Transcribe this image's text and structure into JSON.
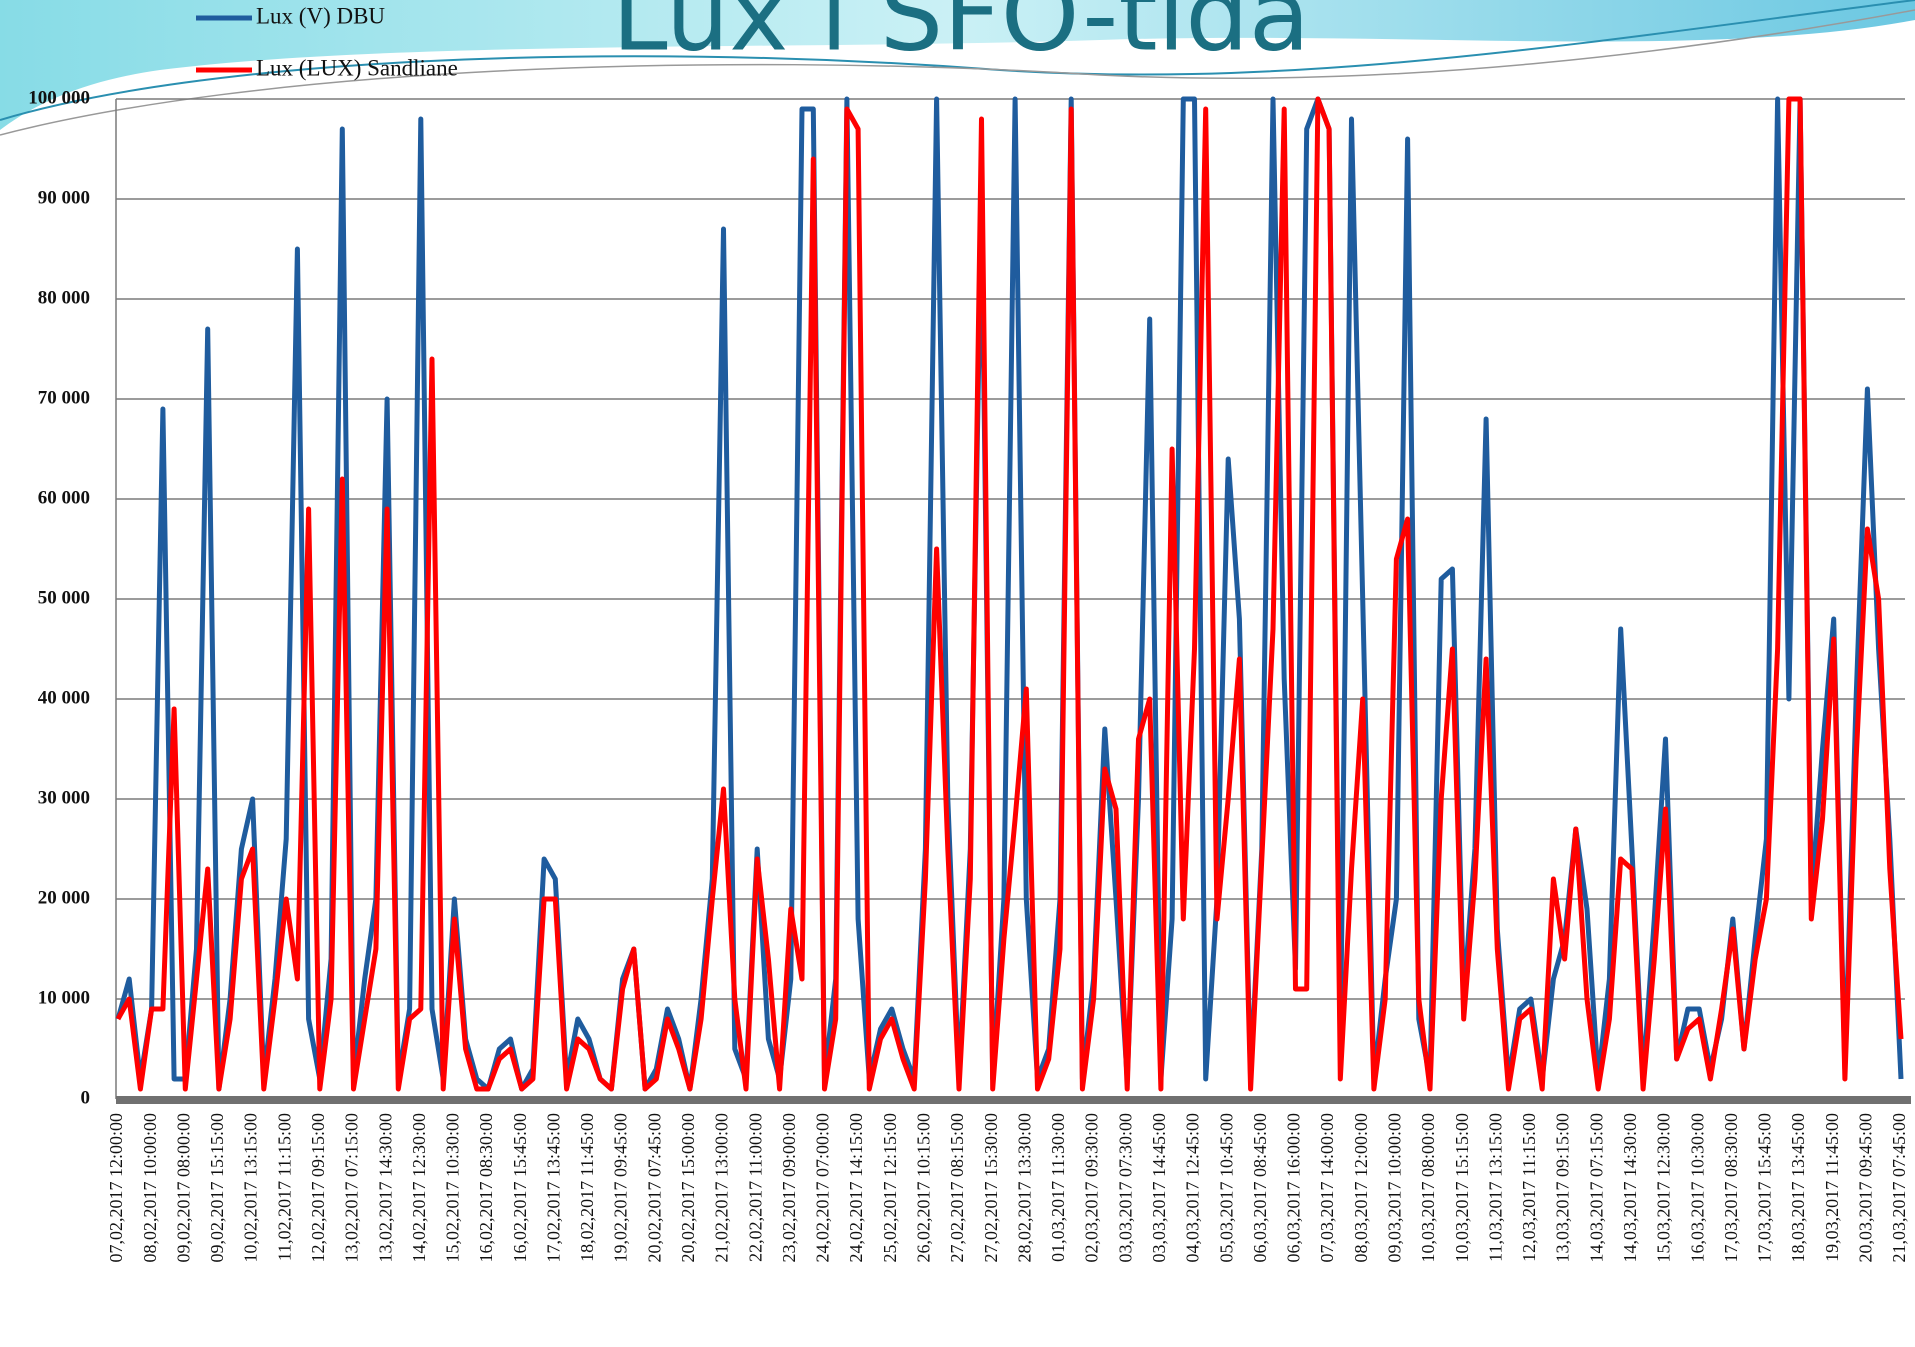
{
  "chart_data": {
    "type": "line",
    "title": "Lux i SFO-tida",
    "categories": [
      "07,02,2017 12:00:00",
      null,
      null,
      "08,02,2017 10:00:00",
      null,
      null,
      "09,02,2017 08:00:00",
      null,
      null,
      "09,02,2017 15:15:00",
      null,
      null,
      "10,02,2017 13:15:00",
      null,
      null,
      "11,02,2017 11:15:00",
      null,
      null,
      "12,02,2017 09:15:00",
      null,
      null,
      "13,02,2017 07:15:00",
      null,
      null,
      "13,02,2017 14:30:00",
      null,
      null,
      "14,02,2017 12:30:00",
      null,
      null,
      "15,02,2017 10:30:00",
      null,
      null,
      "16,02,2017 08:30:00",
      null,
      null,
      "16,02,2017 15:45:00",
      null,
      null,
      "17,02,2017 13:45:00",
      null,
      null,
      "18,02,2017 11:45:00",
      null,
      null,
      "19,02,2017 09:45:00",
      null,
      null,
      "20,02,2017 07:45:00",
      null,
      null,
      "20,02,2017 15:00:00",
      null,
      null,
      "21,02,2017 13:00:00",
      null,
      null,
      "22,02,2017 11:00:00",
      null,
      null,
      "23,02,2017 09:00:00",
      null,
      null,
      "24,02,2017 07:00:00",
      null,
      null,
      "24,02,2017 14:15:00",
      null,
      null,
      "25,02,2017 12:15:00",
      null,
      null,
      "26,02,2017 10:15:00",
      null,
      null,
      "27,02,2017 08:15:00",
      null,
      null,
      "27,02,2017 15:30:00",
      null,
      null,
      "28,02,2017 13:30:00",
      null,
      null,
      "01,03,2017 11:30:00",
      null,
      null,
      "02,03,2017 09:30:00",
      null,
      null,
      "03,03,2017 07:30:00",
      null,
      null,
      "03,03,2017 14:45:00",
      null,
      null,
      "04,03,2017 12:45:00",
      null,
      null,
      "05,03,2017 10:45:00",
      null,
      null,
      "06,03,2017 08:45:00",
      null,
      null,
      "06,03,2017 16:00:00",
      null,
      null,
      "07,03,2017 14:00:00",
      null,
      null,
      "08,03,2017 12:00:00",
      null,
      null,
      "09,03,2017 10:00:00",
      null,
      null,
      "10,03,2017 08:00:00",
      null,
      null,
      "10,03,2017 15:15:00",
      null,
      null,
      "11,03,2017 13:15:00",
      null,
      null,
      "12,03,2017 11:15:00",
      null,
      null,
      "13,03,2017 09:15:00",
      null,
      null,
      "14,03,2017 07:15:00",
      null,
      null,
      "14,03,2017 14:30:00",
      null,
      null,
      "15,03,2017 12:30:00",
      null,
      null,
      "16,03,2017 10:30:00",
      null,
      null,
      "17,03,2017 08:30:00",
      null,
      null,
      "17,03,2017 15:45:00",
      null,
      null,
      "18,03,2017 13:45:00",
      null,
      null,
      "19,03,2017 11:45:00",
      null,
      null,
      "20,03,2017 09:45:00",
      null,
      null,
      "21,03,2017 07:45:00"
    ],
    "series": [
      {
        "name": "Lux (V) DBU",
        "color": "#1f5c9e",
        "values": [
          8000,
          12000,
          2000,
          9000,
          69000,
          2000,
          2000,
          15000,
          77000,
          1000,
          10000,
          25000,
          30000,
          2000,
          12000,
          26000,
          85000,
          8000,
          2000,
          14000,
          97000,
          2000,
          12000,
          20000,
          70000,
          2000,
          9000,
          98000,
          9000,
          2000,
          20000,
          6000,
          2000,
          1000,
          5000,
          6000,
          1000,
          3000,
          24000,
          22000,
          2000,
          8000,
          6000,
          2000,
          1000,
          12000,
          15000,
          1000,
          3000,
          9000,
          6000,
          1000,
          10000,
          22000,
          87000,
          5000,
          2000,
          25000,
          6000,
          2000,
          12000,
          99000,
          99000,
          2000,
          12000,
          100000,
          18000,
          2000,
          7000,
          9000,
          5000,
          2000,
          25000,
          100000,
          30000,
          2000,
          25000,
          90000,
          2000,
          20000,
          100000,
          20000,
          2000,
          5000,
          20000,
          100000,
          2000,
          12000,
          37000,
          20000,
          2000,
          30000,
          78000,
          2000,
          18000,
          100000,
          100000,
          2000,
          20000,
          64000,
          48000,
          2000,
          25000,
          100000,
          42000,
          13000,
          97000,
          100000,
          97000,
          5000,
          98000,
          50000,
          2000,
          12000,
          20000,
          96000,
          8000,
          2000,
          52000,
          53000,
          10000,
          25000,
          68000,
          17000,
          2000,
          9000,
          10000,
          2000,
          12000,
          16000,
          27000,
          19000,
          2000,
          12000,
          47000,
          25000,
          2000,
          18000,
          36000,
          4000,
          9000,
          9000,
          3000,
          8000,
          18000,
          5000,
          16000,
          26000,
          100000,
          40000,
          100000,
          20000,
          35000,
          48000,
          3000,
          40000,
          71000,
          45000,
          26000,
          2000
        ]
      },
      {
        "name": "Lux (LUX) Sandliane",
        "color": "#ff0000",
        "values": [
          8000,
          10000,
          1000,
          9000,
          9000,
          39000,
          1000,
          12000,
          23000,
          1000,
          8000,
          22000,
          25000,
          1000,
          10000,
          20000,
          12000,
          59000,
          1000,
          10000,
          62000,
          1000,
          8000,
          15000,
          59000,
          1000,
          8000,
          9000,
          74000,
          1000,
          18000,
          5000,
          1000,
          1000,
          4000,
          5000,
          1000,
          2000,
          20000,
          20000,
          1000,
          6000,
          5000,
          2000,
          1000,
          11000,
          15000,
          1000,
          2000,
          8000,
          5000,
          1000,
          8000,
          20000,
          31000,
          10000,
          1000,
          24000,
          14000,
          1000,
          19000,
          12000,
          94000,
          1000,
          8000,
          99000,
          97000,
          1000,
          6000,
          8000,
          4000,
          1000,
          22000,
          55000,
          25000,
          1000,
          22000,
          98000,
          1000,
          16000,
          28000,
          41000,
          1000,
          4000,
          15000,
          99000,
          1000,
          10000,
          33000,
          29000,
          1000,
          36000,
          40000,
          1000,
          65000,
          18000,
          45000,
          99000,
          18000,
          30000,
          44000,
          1000,
          24000,
          47000,
          99000,
          11000,
          11000,
          100000,
          97000,
          2000,
          23000,
          40000,
          1000,
          10000,
          54000,
          58000,
          10000,
          1000,
          30000,
          45000,
          8000,
          22000,
          44000,
          15000,
          1000,
          8000,
          9000,
          1000,
          22000,
          14000,
          27000,
          10000,
          1000,
          8000,
          24000,
          23000,
          1000,
          14000,
          29000,
          4000,
          7000,
          8000,
          2000,
          9000,
          17000,
          5000,
          14000,
          20000,
          45000,
          100000,
          100000,
          18000,
          28000,
          46000,
          2000,
          34000,
          57000,
          50000,
          23000,
          6000
        ]
      }
    ],
    "ylim": [
      0,
      100000
    ],
    "yticks": [
      0,
      {
        "value": 10000,
        "label": "10 000"
      },
      {
        "value": 20000,
        "label": "20 000"
      },
      {
        "value": 30000,
        "label": "30 000"
      },
      {
        "value": 40000,
        "label": "40 000"
      },
      {
        "value": 50000,
        "label": "50 000"
      },
      {
        "value": 60000,
        "label": "60 000"
      },
      {
        "value": 70000,
        "label": "70 000"
      },
      {
        "value": 80000,
        "label": "80 000"
      },
      {
        "value": 90000,
        "label": "90 000"
      },
      {
        "value": 100000,
        "label": "100 000"
      }
    ],
    "grid": true
  }
}
